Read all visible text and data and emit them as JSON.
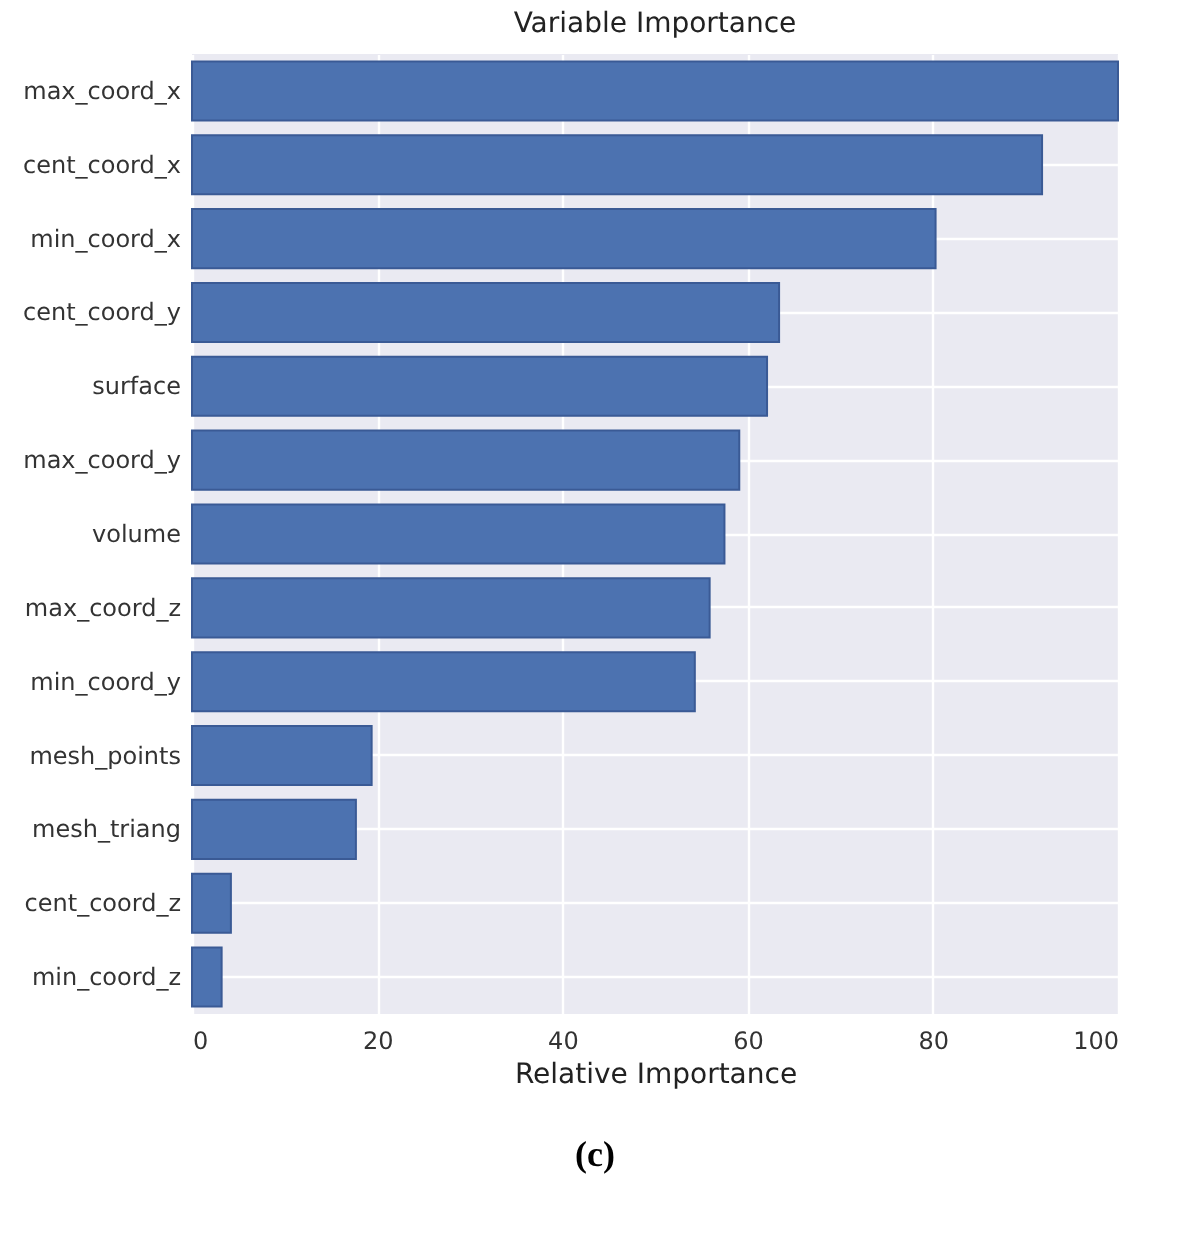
{
  "chart_data": {
    "type": "bar",
    "orientation": "horizontal",
    "title": "Variable Importance",
    "xlabel": "Relative Importance",
    "categories": [
      "max_coord_x",
      "cent_coord_x",
      "min_coord_x",
      "cent_coord_y",
      "surface",
      "max_coord_y",
      "volume",
      "max_coord_z",
      "min_coord_y",
      "mesh_points",
      "mesh_triang",
      "cent_coord_z",
      "min_coord_z"
    ],
    "values": [
      100,
      91.8,
      80.3,
      63.4,
      62.1,
      59.1,
      57.5,
      55.9,
      54.3,
      19.4,
      17.7,
      4.2,
      3.2
    ],
    "color": "#4c72b0",
    "xlim": [
      0,
      100
    ],
    "xticks": [
      0,
      20,
      40,
      60,
      80,
      100
    ],
    "grid": true,
    "annotations": [
      "(c)"
    ]
  }
}
